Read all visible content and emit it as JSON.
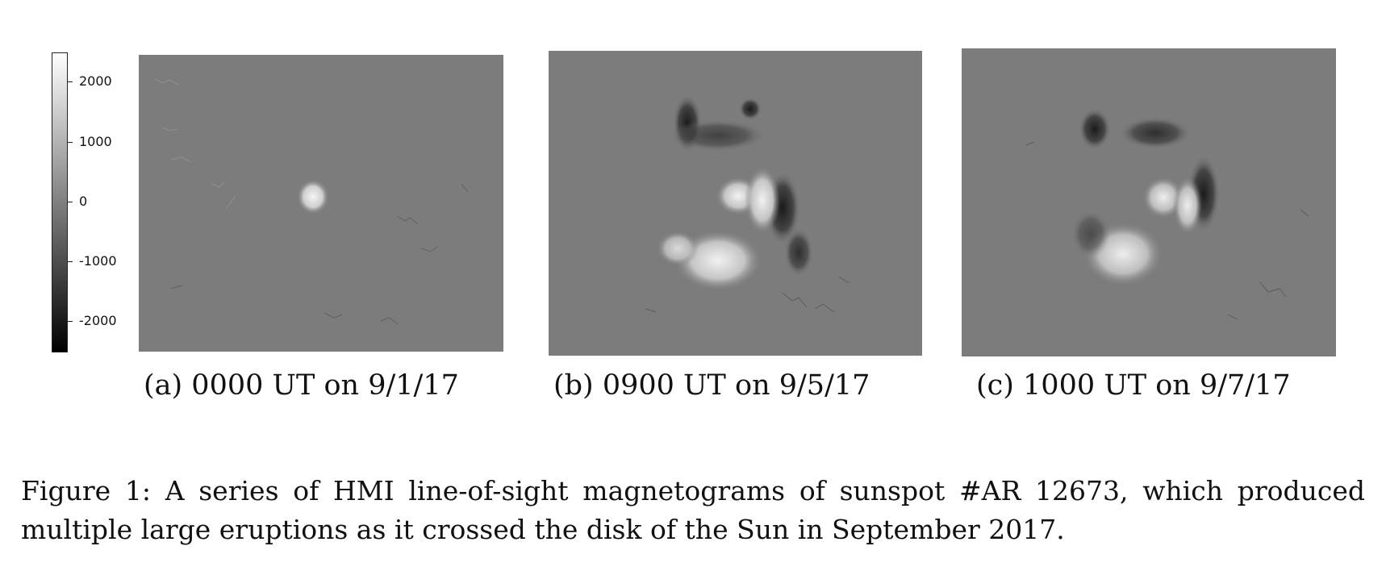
{
  "colorbar": {
    "ticks": [
      "2000",
      "1000",
      "0",
      "-1000",
      "-2000"
    ]
  },
  "panels": [
    {
      "caption": "(a) 0000 UT on 9/1/17",
      "image": "magnetogram-panel-a"
    },
    {
      "caption": "(b) 0900 UT on 9/5/17",
      "image": "magnetogram-panel-b"
    },
    {
      "caption": "(c) 1000 UT on 9/7/17",
      "image": "magnetogram-panel-c"
    }
  ],
  "figure": {
    "caption_line1": "Figure 1:  A series of HMI line-of-sight magnetograms of sunspot #AR 12673, which produced",
    "caption_line2": "multiple large eruptions as it crossed the disk of the Sun in September 2017."
  }
}
